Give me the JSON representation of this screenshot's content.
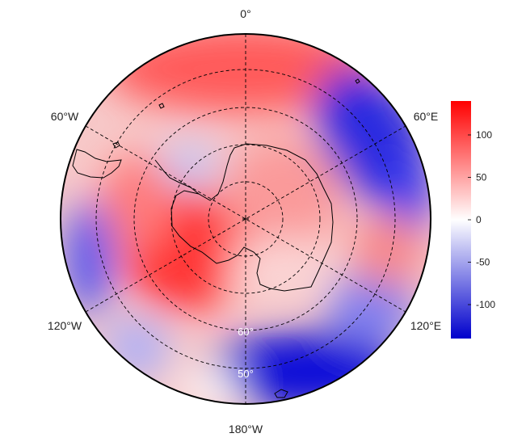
{
  "map": {
    "projection": "south polar stereographic",
    "longitude_labels": {
      "top": "0°",
      "upper_left": "60°W",
      "upper_right": "60°E",
      "lower_left": "120°W",
      "lower_right": "120°E",
      "bottom": "180°W"
    },
    "latitude_labels": [
      "60°",
      "50°"
    ],
    "continent": "Antarctica"
  },
  "colorbar": {
    "ticks": [
      "100",
      "50",
      "0",
      "-50",
      "-100"
    ],
    "range": [
      -140,
      140
    ],
    "colors": {
      "low": "#0000cc",
      "mid": "#ffffff",
      "high": "#ff0000"
    }
  },
  "field": {
    "anomalies": [
      {
        "region": "0° sector (top)",
        "sign": "positive",
        "value": 60
      },
      {
        "region": "30°E-60°E sector",
        "sign": "negative",
        "value": -120
      },
      {
        "region": "180° sector (bottom right)",
        "sign": "negative",
        "value": -140
      },
      {
        "region": "90°W-150°W sector (lower left)",
        "sign": "positive",
        "value": 110
      },
      {
        "region": "90°W sector (left edge)",
        "sign": "negative",
        "value": -70
      },
      {
        "region": "East Antarctica interior",
        "sign": "positive",
        "value": 40
      }
    ]
  }
}
